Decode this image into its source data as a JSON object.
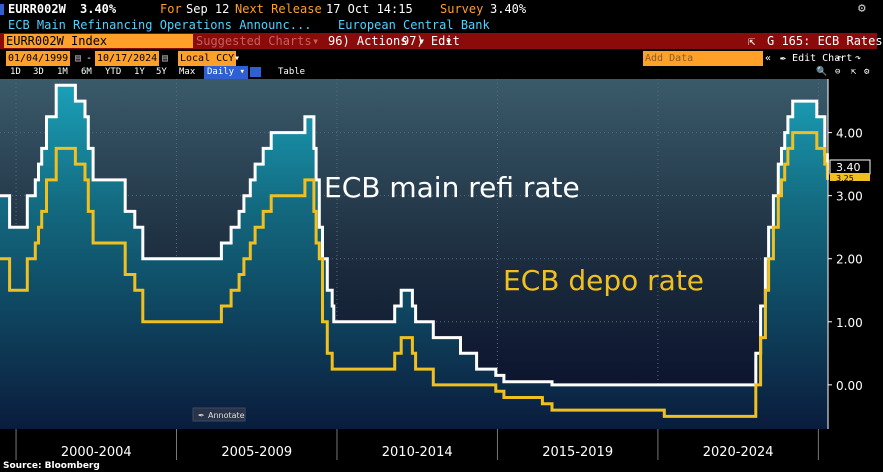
{
  "header": {
    "ticker": "EURR002W",
    "last_value": "3.40%",
    "for_label": "For",
    "for_date": "Sep 12",
    "next_release_label": "Next Release",
    "next_release_date": "17 Oct 14:15",
    "survey_label": "Survey",
    "survey_value": "3.40%",
    "description": "ECB Main Refinancing Operations Announc...",
    "source_name": "European Central Bank"
  },
  "toolbar": {
    "security": "EURR002W Index",
    "suggested": "Suggested Charts",
    "actions": "96) Actions",
    "edit": "97) Edit",
    "chart_name": "G 165: ECB Rates"
  },
  "controls": {
    "start_date": "01/04/1999",
    "end_date": "10/17/2024",
    "currency": "Local CCY",
    "add_data_placeholder": "Add Data",
    "edit_chart": "Edit Chart",
    "ranges": [
      "1D",
      "3D",
      "1M",
      "6M",
      "YTD",
      "1Y",
      "5Y",
      "Max"
    ],
    "frequency": "Daily",
    "table": "Table",
    "colors": {
      "accent": "#ffa028",
      "menu_bar": "#8b0a0a",
      "active": "#2f5fd0"
    }
  },
  "chart_data": {
    "type": "line",
    "annotations": {
      "refi_label": "ECB main refi rate",
      "depo_label": "ECB depo rate",
      "annotate_button": "Annotate",
      "last_refi": "3.40",
      "last_depo": "3.25"
    },
    "x_range": [
      1999.0,
      2024.8
    ],
    "ylim": [
      -0.7,
      4.85
    ],
    "y_ticks": [
      0,
      1,
      2,
      3,
      4
    ],
    "y_tick_labels": [
      "0.00",
      "1.00",
      "2.00",
      "3.00",
      "4.00"
    ],
    "x_period_labels": [
      "2000-2004",
      "2005-2009",
      "2010-2014",
      "2015-2019",
      "2020-2024"
    ],
    "x_period_centers": [
      2002.0,
      2007.0,
      2012.0,
      2017.0,
      2022.0
    ],
    "x_period_dividers": [
      1999.5,
      2004.5,
      2009.5,
      2014.5,
      2019.5,
      2024.5
    ],
    "series": [
      {
        "name": "ECB main refi rate",
        "color": "#ffffff",
        "points": [
          [
            1999.0,
            3.0
          ],
          [
            1999.3,
            2.5
          ],
          [
            1999.85,
            3.0
          ],
          [
            2000.1,
            3.25
          ],
          [
            2000.2,
            3.5
          ],
          [
            2000.3,
            3.75
          ],
          [
            2000.45,
            4.25
          ],
          [
            2000.75,
            4.75
          ],
          [
            2001.35,
            4.5
          ],
          [
            2001.65,
            4.25
          ],
          [
            2001.75,
            3.75
          ],
          [
            2001.9,
            3.25
          ],
          [
            2002.9,
            2.75
          ],
          [
            2003.2,
            2.5
          ],
          [
            2003.45,
            2.0
          ],
          [
            2005.9,
            2.25
          ],
          [
            2006.2,
            2.5
          ],
          [
            2006.45,
            2.75
          ],
          [
            2006.6,
            3.0
          ],
          [
            2006.8,
            3.25
          ],
          [
            2006.95,
            3.5
          ],
          [
            2007.2,
            3.75
          ],
          [
            2007.45,
            4.0
          ],
          [
            2008.5,
            4.25
          ],
          [
            2008.78,
            3.75
          ],
          [
            2008.85,
            3.25
          ],
          [
            2008.95,
            2.5
          ],
          [
            2009.05,
            2.0
          ],
          [
            2009.2,
            1.5
          ],
          [
            2009.35,
            1.25
          ],
          [
            2009.4,
            1.0
          ],
          [
            2011.3,
            1.25
          ],
          [
            2011.5,
            1.5
          ],
          [
            2011.85,
            1.25
          ],
          [
            2011.95,
            1.0
          ],
          [
            2012.5,
            0.75
          ],
          [
            2013.35,
            0.5
          ],
          [
            2013.85,
            0.25
          ],
          [
            2014.45,
            0.15
          ],
          [
            2014.7,
            0.05
          ],
          [
            2016.2,
            0.0
          ],
          [
            2022.55,
            0.5
          ],
          [
            2022.7,
            1.25
          ],
          [
            2022.85,
            2.0
          ],
          [
            2022.95,
            2.5
          ],
          [
            2023.1,
            3.0
          ],
          [
            2023.25,
            3.5
          ],
          [
            2023.35,
            3.75
          ],
          [
            2023.45,
            4.0
          ],
          [
            2023.55,
            4.25
          ],
          [
            2023.7,
            4.5
          ],
          [
            2024.45,
            4.25
          ],
          [
            2024.7,
            3.65
          ],
          [
            2024.78,
            3.4
          ]
        ]
      },
      {
        "name": "ECB depo rate",
        "color": "#f0c020",
        "points": [
          [
            1999.0,
            2.0
          ],
          [
            1999.3,
            1.5
          ],
          [
            1999.85,
            2.0
          ],
          [
            2000.1,
            2.25
          ],
          [
            2000.2,
            2.5
          ],
          [
            2000.3,
            2.75
          ],
          [
            2000.45,
            3.25
          ],
          [
            2000.75,
            3.75
          ],
          [
            2001.35,
            3.5
          ],
          [
            2001.65,
            3.25
          ],
          [
            2001.75,
            2.75
          ],
          [
            2001.9,
            2.25
          ],
          [
            2002.9,
            1.75
          ],
          [
            2003.2,
            1.5
          ],
          [
            2003.45,
            1.0
          ],
          [
            2005.9,
            1.25
          ],
          [
            2006.2,
            1.5
          ],
          [
            2006.45,
            1.75
          ],
          [
            2006.6,
            2.0
          ],
          [
            2006.8,
            2.25
          ],
          [
            2006.95,
            2.5
          ],
          [
            2007.2,
            2.75
          ],
          [
            2007.45,
            3.0
          ],
          [
            2008.5,
            3.25
          ],
          [
            2008.78,
            2.75
          ],
          [
            2008.85,
            2.25
          ],
          [
            2008.95,
            2.0
          ],
          [
            2009.05,
            1.0
          ],
          [
            2009.2,
            0.5
          ],
          [
            2009.35,
            0.25
          ],
          [
            2011.3,
            0.5
          ],
          [
            2011.5,
            0.75
          ],
          [
            2011.85,
            0.5
          ],
          [
            2011.95,
            0.25
          ],
          [
            2012.5,
            0.0
          ],
          [
            2014.45,
            -0.1
          ],
          [
            2014.7,
            -0.2
          ],
          [
            2015.9,
            -0.3
          ],
          [
            2016.2,
            -0.4
          ],
          [
            2019.7,
            -0.5
          ],
          [
            2022.55,
            0.0
          ],
          [
            2022.7,
            0.75
          ],
          [
            2022.85,
            1.5
          ],
          [
            2022.95,
            2.0
          ],
          [
            2023.1,
            2.5
          ],
          [
            2023.25,
            3.0
          ],
          [
            2023.35,
            3.25
          ],
          [
            2023.45,
            3.5
          ],
          [
            2023.55,
            3.75
          ],
          [
            2023.7,
            4.0
          ],
          [
            2024.45,
            3.75
          ],
          [
            2024.7,
            3.5
          ],
          [
            2024.78,
            3.25
          ]
        ]
      }
    ]
  },
  "footer": {
    "source": "Source: Bloomberg"
  }
}
